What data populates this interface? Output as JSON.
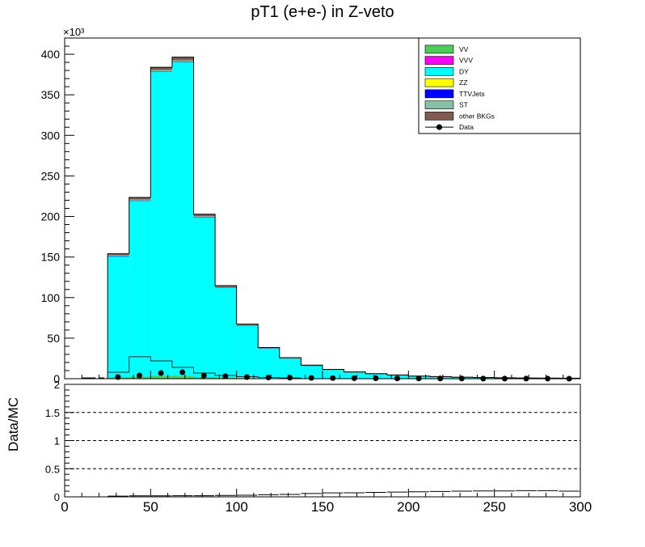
{
  "chart_data": [
    {
      "type": "bar",
      "stacked": true,
      "title": "pT1 (e+e-) in Z-veto",
      "xlim": [
        0,
        300
      ],
      "ylim": [
        0,
        420
      ],
      "y_multiplier_label": "×10³",
      "y_ticks": [
        0,
        50,
        100,
        150,
        200,
        250,
        300,
        350,
        400
      ],
      "bin_edges": [
        25,
        37.5,
        50,
        62.5,
        75,
        87.5,
        100,
        112.5,
        125,
        137.5,
        150,
        162.5,
        175,
        187.5,
        200,
        212.5,
        225,
        237.5,
        250,
        262.5,
        275,
        287.5,
        300
      ],
      "series": [
        {
          "name": "VV",
          "color": "#4dcc5a",
          "values": [
            1.5,
            2.5,
            3.5,
            3.5,
            2,
            1.3,
            0.8,
            0.5,
            0.35,
            0.25,
            0.18,
            0.12,
            0.08,
            0.06,
            0.04,
            0.03,
            0.02,
            0.02,
            0.01,
            0.01,
            0.01,
            0.01
          ]
        },
        {
          "name": "VVV",
          "color": "#ff00ff",
          "values": [
            0,
            0,
            0,
            0,
            0,
            0,
            0,
            0,
            0,
            0,
            0,
            0,
            0,
            0,
            0,
            0,
            0,
            0,
            0,
            0,
            0,
            0
          ]
        },
        {
          "name": "DY",
          "color": "#00ffff",
          "values": [
            150,
            217,
            375,
            387,
            197,
            111,
            65,
            37,
            25,
            16,
            11,
            8,
            6,
            4.5,
            3.2,
            2.5,
            1.8,
            1.4,
            1.1,
            0.9,
            0.7,
            0.6
          ]
        },
        {
          "name": "ZZ",
          "color": "#ffff00",
          "values": [
            0.1,
            0.2,
            0.3,
            0.3,
            0.2,
            0.1,
            0.05,
            0.03,
            0.02,
            0.01,
            0.01,
            0.01,
            0,
            0,
            0,
            0,
            0,
            0,
            0,
            0,
            0,
            0
          ]
        },
        {
          "name": "TTVJets",
          "color": "#0000ff",
          "values": [
            0.05,
            0.1,
            0.15,
            0.15,
            0.1,
            0.05,
            0.03,
            0.02,
            0.01,
            0.01,
            0,
            0,
            0,
            0,
            0,
            0,
            0,
            0,
            0,
            0,
            0,
            0
          ]
        },
        {
          "name": "ST",
          "color": "#88bfa8",
          "values": [
            0.8,
            1.2,
            1.5,
            1.5,
            1,
            0.6,
            0.4,
            0.25,
            0.15,
            0.1,
            0.06,
            0.04,
            0.03,
            0.02,
            0.01,
            0.01,
            0.01,
            0,
            0,
            0,
            0,
            0
          ]
        },
        {
          "name": "other BKGs",
          "color": "#7f5a52",
          "values": [
            1.5,
            2.5,
            3.5,
            4,
            2.5,
            1.7,
            1,
            0.6,
            0.4,
            0.3,
            0.2,
            0.15,
            0.1,
            0.08,
            0.05,
            0.04,
            0.03,
            0.02,
            0.02,
            0.01,
            0.01,
            0.01
          ]
        }
      ],
      "overlay_line": {
        "x": [
          25,
          37.5,
          50,
          62.5,
          75,
          87.5,
          100,
          112.5,
          125
        ],
        "y": [
          8,
          27,
          22,
          14,
          7,
          4,
          2.5,
          1.5,
          1
        ]
      },
      "data": {
        "name": "Data",
        "x": [
          31,
          43.5,
          56,
          68.5,
          81,
          93.5,
          106,
          118.5,
          131,
          143.5,
          156,
          168.5,
          181,
          193.5,
          206,
          218.5,
          231,
          243.5,
          256,
          268.5,
          281,
          293.5
        ],
        "y": [
          2,
          4,
          7,
          8,
          4,
          3,
          2,
          1.5,
          1.2,
          1,
          0.8,
          0.6,
          0.5,
          0.4,
          0.3,
          0.25,
          0.2,
          0.15,
          0.12,
          0.1,
          0.08,
          0.06
        ]
      },
      "legend": {
        "position": "top-right",
        "entries": [
          {
            "label": "VV",
            "color": "#4dcc5a",
            "kind": "box"
          },
          {
            "label": "VVV",
            "color": "#ff00ff",
            "kind": "box"
          },
          {
            "label": "DY",
            "color": "#00ffff",
            "kind": "box"
          },
          {
            "label": "ZZ",
            "color": "#ffff00",
            "kind": "box"
          },
          {
            "label": "TTVJets",
            "color": "#0000ff",
            "kind": "box"
          },
          {
            "label": "ST",
            "color": "#88bfa8",
            "kind": "box"
          },
          {
            "label": "other BKGs",
            "color": "#7f5a52",
            "kind": "box"
          },
          {
            "label": "Data",
            "color": "#000000",
            "kind": "marker"
          }
        ]
      }
    },
    {
      "type": "scatter",
      "ylabel": "Data/MC",
      "xlim": [
        0,
        300
      ],
      "ylim": [
        0,
        2
      ],
      "x_ticks": [
        0,
        50,
        100,
        150,
        200,
        250,
        300
      ],
      "y_ticks": [
        0,
        0.5,
        1,
        1.5,
        2
      ],
      "reference_lines": [
        0.5,
        1,
        1.5
      ],
      "x": [
        31,
        43.5,
        56,
        68.5,
        81,
        93.5,
        106,
        118.5,
        131,
        143.5,
        156,
        168.5,
        181,
        193.5,
        206,
        218.5,
        231,
        243.5,
        256,
        268.5,
        281,
        293.5
      ],
      "y": [
        0.013,
        0.018,
        0.018,
        0.02,
        0.019,
        0.025,
        0.029,
        0.037,
        0.044,
        0.06,
        0.07,
        0.072,
        0.08,
        0.085,
        0.09,
        0.095,
        0.1,
        0.105,
        0.105,
        0.11,
        0.11,
        0.1
      ]
    }
  ]
}
